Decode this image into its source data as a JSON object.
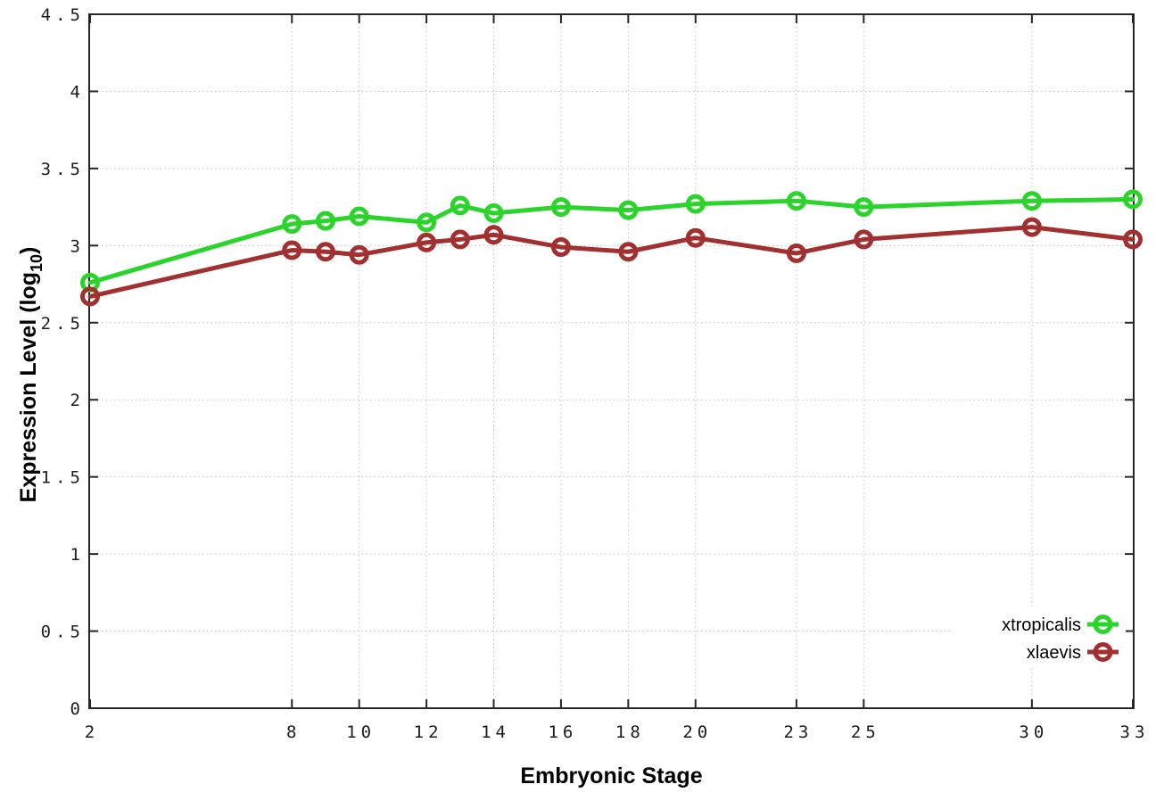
{
  "figure": {
    "background": "#ffffff",
    "border_color": "#262626",
    "grid_color": "#bdbdbd",
    "tick_color": "#262626",
    "text_color": "#000000"
  },
  "chart_data": {
    "type": "line",
    "title": "",
    "xlabel": "Embryonic Stage",
    "ylabel": "Expression Level (log10)",
    "ylabel_parts": {
      "pre": "Expression Level (log",
      "sub": "10",
      "post": ")"
    },
    "xlim": [
      2,
      33
    ],
    "ylim": [
      0,
      4.5
    ],
    "xticks": [
      2,
      8,
      10,
      12,
      14,
      16,
      18,
      20,
      23,
      25,
      30,
      33
    ],
    "yticks": [
      0,
      0.5,
      1,
      1.5,
      2,
      2.5,
      3,
      3.5,
      4,
      4.5
    ],
    "grid": true,
    "legend_position": "inside-right",
    "x": [
      2,
      8,
      9,
      10,
      12,
      13,
      14,
      16,
      18,
      20,
      23,
      25,
      30,
      33
    ],
    "series": [
      {
        "name": "xtropicalis",
        "color": "#2bd42b",
        "marker": "open-circle",
        "values": [
          2.76,
          3.14,
          3.16,
          3.19,
          3.15,
          3.26,
          3.21,
          3.25,
          3.23,
          3.27,
          3.29,
          3.25,
          3.29,
          3.3
        ]
      },
      {
        "name": "xlaevis",
        "color": "#a23030",
        "marker": "open-circle",
        "values": [
          2.67,
          2.97,
          2.96,
          2.94,
          3.02,
          3.04,
          3.07,
          2.99,
          2.96,
          3.05,
          2.95,
          3.04,
          3.12,
          3.04
        ]
      }
    ]
  }
}
